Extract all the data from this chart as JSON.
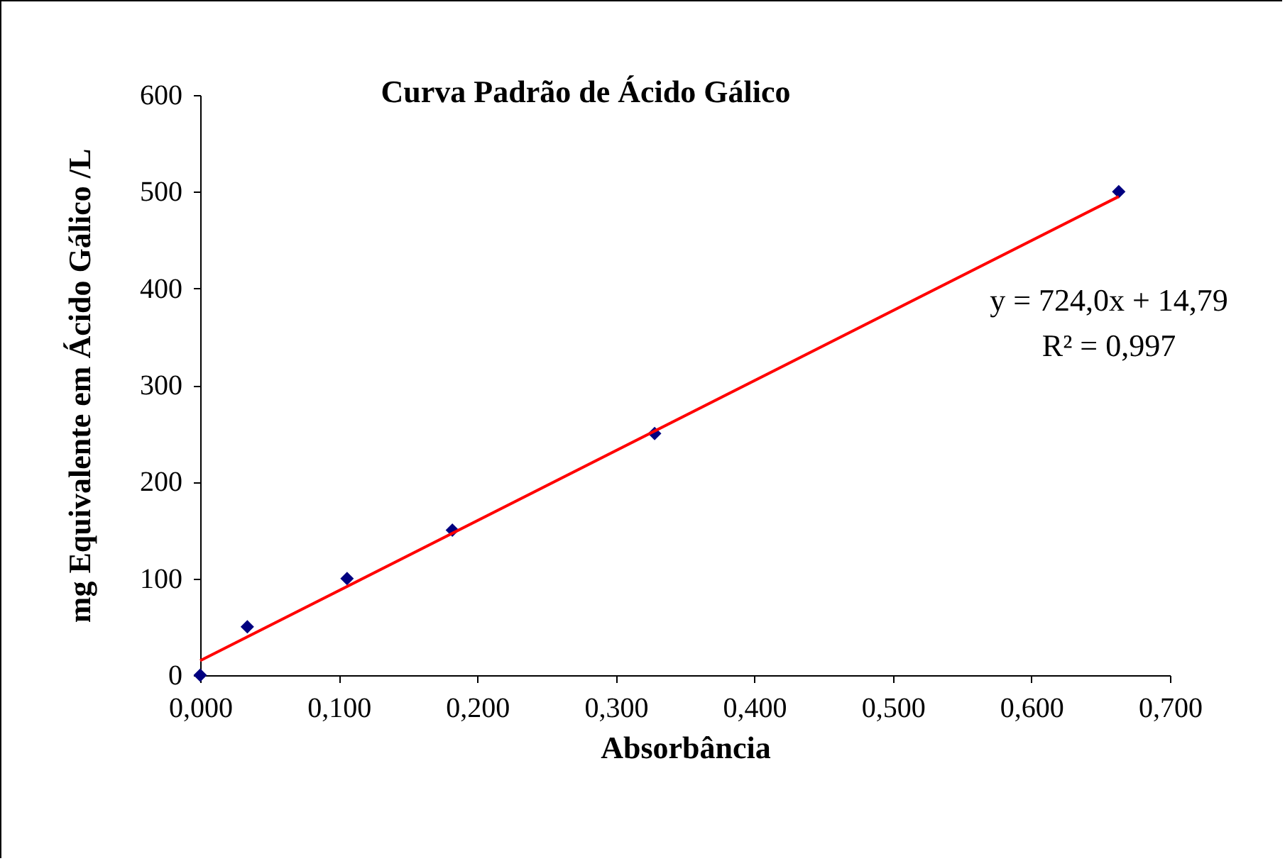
{
  "chart_data": {
    "type": "scatter",
    "title": "Curva Padrão de Ácido Gálico",
    "xlabel": "Absorbância",
    "ylabel": "mg Equivalente em Ácido Gálico /L",
    "series": [
      {
        "color": "#000080",
        "x": [
          0,
          0.034,
          0.106,
          0.182,
          0.328,
          0.663
        ],
        "values": [
          0,
          50,
          100,
          150,
          250,
          500
        ],
        "marker": "diamond"
      },
      {
        "type": "line",
        "color": "#ff0000",
        "x": [
          0,
          0.663
        ],
        "values": [
          15,
          495
        ],
        "line_style": "solid"
      }
    ],
    "annotations": [
      "y = 724,0x + 14,79",
      "R² = 0,997"
    ],
    "xlim": [
      0,
      0.7
    ],
    "xticks": [
      {
        "value": 0,
        "label": "0,000"
      },
      {
        "value": 0.1,
        "label": "0,100"
      },
      {
        "value": 0.2,
        "label": "0,200"
      },
      {
        "value": 0.3,
        "label": "0,300"
      },
      {
        "value": 0.4,
        "label": "0,400"
      },
      {
        "value": 0.5,
        "label": "0,500"
      },
      {
        "value": 0.6,
        "label": "0,600"
      },
      {
        "value": 0.7,
        "label": "0,700"
      }
    ],
    "ylim": [
      0,
      600
    ],
    "yticks": [
      0,
      100,
      200,
      300,
      400,
      500,
      600
    ],
    "grid": false
  }
}
